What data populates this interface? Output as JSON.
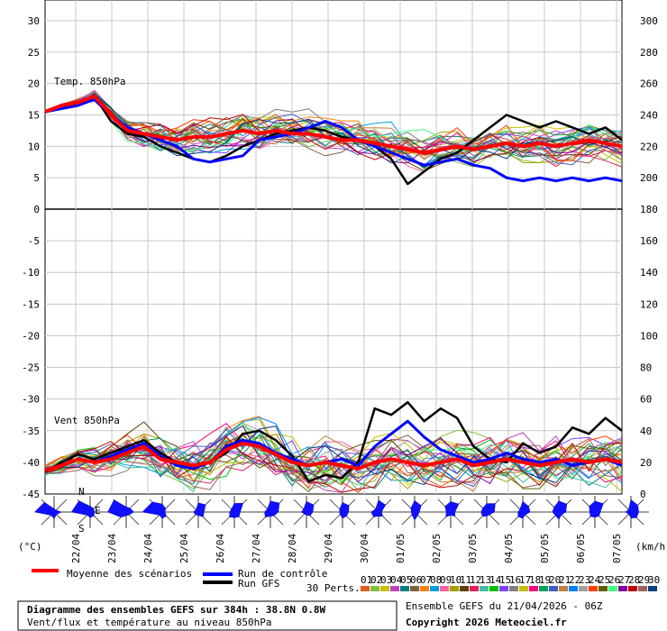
{
  "chart_data": [
    {
      "type": "line",
      "label": "Temp. 850hPa",
      "y_left_ticks": [
        30,
        25,
        20,
        15,
        10,
        5,
        0
      ],
      "y_right_ticks": [
        300,
        280,
        260,
        240,
        220,
        200,
        180
      ],
      "ylim": [
        0,
        30
      ],
      "x_labels": [
        "22/04",
        "23/04",
        "24/04",
        "25/04",
        "26/04",
        "27/04",
        "28/04",
        "29/04",
        "30/04",
        "01/05",
        "02/05",
        "03/05",
        "04/05",
        "05/05",
        "06/05",
        "07/05"
      ],
      "series": [
        {
          "name": "Moyenne des scénarios",
          "color": "#ff0000",
          "values": [
            15.5,
            16.5,
            17,
            18,
            15,
            12.5,
            12,
            11.5,
            11,
            11.5,
            11.5,
            12,
            12.5,
            12,
            12.5,
            12,
            12,
            11.5,
            11,
            11,
            10.5,
            10,
            9.5,
            9,
            9.5,
            10,
            9.5,
            10,
            10.5,
            10,
            10.5,
            10,
            10.5,
            11,
            10.5,
            10
          ]
        },
        {
          "name": "Run de contrôle",
          "color": "#0000ff",
          "values": [
            15.5,
            16,
            16.5,
            17.5,
            15,
            13,
            12,
            11,
            10,
            8,
            7.5,
            8,
            8.5,
            11,
            11.5,
            12,
            13,
            14,
            13,
            11,
            10,
            9,
            8,
            7,
            7.5,
            8,
            7,
            6.5,
            5,
            4.5,
            5,
            4.5,
            5,
            4.5,
            5,
            4.5
          ]
        },
        {
          "name": "Run GFS",
          "color": "#000000",
          "values": [
            15.5,
            16,
            17,
            18,
            14,
            12,
            11.5,
            10,
            9,
            8,
            7.5,
            8.5,
            10,
            11,
            12,
            12.5,
            13,
            12.5,
            11.5,
            11,
            10,
            8,
            4,
            6,
            8,
            9,
            11,
            13,
            15,
            14,
            13,
            14,
            13,
            12,
            13,
            11
          ]
        }
      ]
    },
    {
      "type": "line",
      "label": "Vent 850hPa",
      "y_left_ticks": [
        -5,
        -10,
        -15,
        -20,
        -25,
        -30,
        -35,
        -40,
        -45
      ],
      "y_right_ticks": [
        160,
        140,
        120,
        100,
        80,
        60,
        40,
        20,
        0
      ],
      "ylim": [
        0,
        180
      ],
      "series": [
        {
          "name": "Moyenne des scénarios",
          "color": "#ff0000",
          "values": [
            15,
            18,
            22,
            20,
            22,
            26,
            30,
            22,
            20,
            18,
            20,
            28,
            32,
            30,
            25,
            20,
            18,
            20,
            18,
            16,
            20,
            22,
            20,
            18,
            20,
            22,
            18,
            20,
            22,
            20,
            18,
            20,
            22,
            20,
            22,
            20
          ]
        },
        {
          "name": "Run de contrôle",
          "color": "#0000ff",
          "values": [
            15,
            18,
            22,
            20,
            24,
            28,
            32,
            24,
            18,
            16,
            20,
            30,
            34,
            32,
            26,
            22,
            18,
            20,
            22,
            18,
            30,
            38,
            46,
            36,
            28,
            24,
            20,
            22,
            26,
            22,
            20,
            22,
            18,
            20,
            22,
            18
          ]
        },
        {
          "name": "Run GFS",
          "color": "#000000",
          "values": [
            14,
            20,
            25,
            22,
            26,
            30,
            34,
            26,
            20,
            16,
            20,
            26,
            38,
            40,
            34,
            24,
            8,
            12,
            10,
            20,
            54,
            50,
            58,
            46,
            54,
            48,
            30,
            22,
            20,
            32,
            26,
            30,
            42,
            38,
            48,
            40
          ]
        }
      ]
    }
  ],
  "labels": {
    "unit_left": "(°C)",
    "unit_right": "(km/h)",
    "mean": "Moyenne des scénarios",
    "control": "Run de contrôle",
    "gfs": "Run GFS",
    "perts": "30 Perts.",
    "compass_n": "N",
    "compass_s": "S",
    "compass_e": "E",
    "title": "Diagramme des ensembles GEFS sur 384h : 38.8N 0.8W",
    "subtitle": "Vent/flux et température au niveau 850hPa",
    "run": "Ensemble GEFS du 21/04/2026 - 06Z",
    "copyright": "Copyright 2026 Meteociel.fr"
  },
  "pert_ids": [
    "01",
    "02",
    "03",
    "04",
    "05",
    "06",
    "07",
    "08",
    "09",
    "10",
    "11",
    "12",
    "13",
    "14",
    "15",
    "16",
    "17",
    "18",
    "19",
    "20",
    "21",
    "22",
    "23",
    "24",
    "25",
    "26",
    "27",
    "28",
    "29",
    "30"
  ],
  "pert_colors": [
    "#e06020",
    "#80c040",
    "#d0c000",
    "#c040c0",
    "#008080",
    "#806040",
    "#ff8000",
    "#00a0e0",
    "#ff60a0",
    "#a0a000",
    "#604000",
    "#e02060",
    "#40c0a0",
    "#00c000",
    "#8040ff",
    "#808080",
    "#c0c000",
    "#ff0080",
    "#00a060",
    "#4060c0",
    "#c08040",
    "#0080ff",
    "#a0a0a0",
    "#ff4000",
    "#606000",
    "#40ff80",
    "#8000a0",
    "#c00000",
    "#a06060",
    "#004080"
  ]
}
